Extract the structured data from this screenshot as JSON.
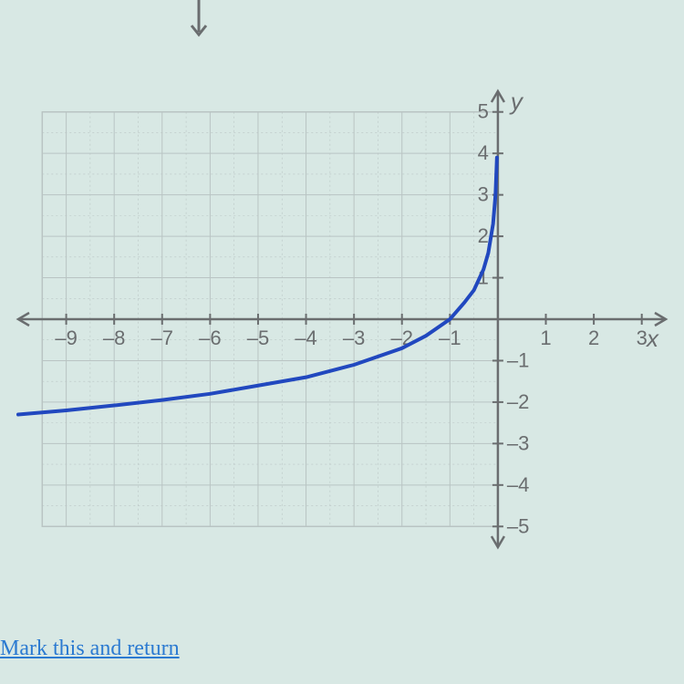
{
  "chart": {
    "type": "line",
    "xlim": [
      -10,
      3.5
    ],
    "ylim": [
      -5.5,
      5.5
    ],
    "xtick_step": 1,
    "ytick_step": 1,
    "x_ticks_labeled": [
      -9,
      -8,
      -7,
      -6,
      -5,
      -4,
      -3,
      -2,
      -1,
      1,
      2,
      3
    ],
    "y_ticks_labeled": [
      -5,
      -4,
      -3,
      -2,
      -1,
      1,
      2,
      3,
      4,
      5
    ],
    "x_axis_label": "x",
    "y_axis_label": "y",
    "grid_xmin": -9.5,
    "grid_xmax": 0,
    "grid_ymin": -5,
    "grid_ymax": 5,
    "axis_color": "#6a6d6f",
    "grid_color": "#b9c4c3",
    "background_color": "#d8e8e4",
    "curve_color": "#2148bf",
    "curve_width": 4,
    "label_color": "#6a6d6f",
    "tick_font_size": 22,
    "axis_label_font_size": 26,
    "curve_points": [
      [
        -10,
        -2.3
      ],
      [
        -9,
        -2.2
      ],
      [
        -8,
        -2.08
      ],
      [
        -7,
        -1.95
      ],
      [
        -6,
        -1.8
      ],
      [
        -5,
        -1.6
      ],
      [
        -4,
        -1.4
      ],
      [
        -3,
        -1.1
      ],
      [
        -2,
        -0.7
      ],
      [
        -1.5,
        -0.4
      ],
      [
        -1,
        0
      ],
      [
        -0.7,
        0.4
      ],
      [
        -0.5,
        0.7
      ],
      [
        -0.3,
        1.2
      ],
      [
        -0.2,
        1.6
      ],
      [
        -0.1,
        2.3
      ],
      [
        -0.05,
        3.0
      ],
      [
        -0.02,
        3.9
      ]
    ]
  },
  "link_text": "Mark this and return",
  "top_arrow_color": "#6a6d6f"
}
